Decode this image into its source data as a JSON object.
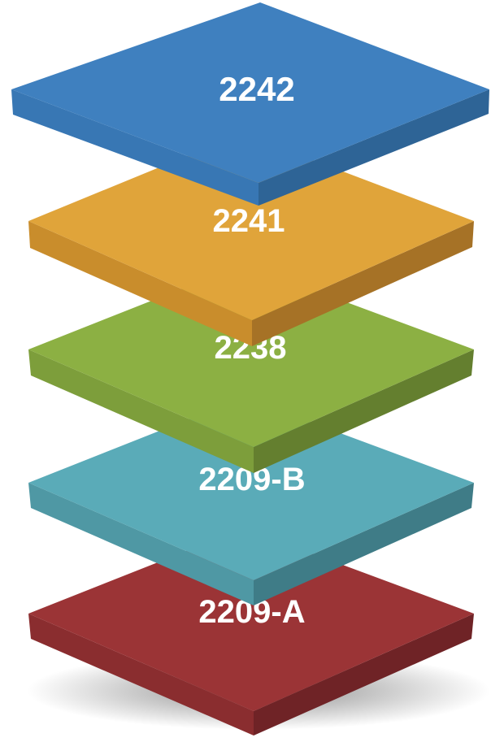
{
  "layers": [
    {
      "label": "2242",
      "colors": {
        "top": "#3f80bf",
        "left": "#3877b4",
        "right": "#2e6496"
      }
    },
    {
      "label": "2241",
      "colors": {
        "top": "#e0a43a",
        "left": "#c98d2c",
        "right": "#a67226"
      }
    },
    {
      "label": "2238",
      "colors": {
        "top": "#8cb043",
        "left": "#7d9e3b",
        "right": "#647f2f"
      }
    },
    {
      "label": "2209-B",
      "colors": {
        "top": "#5aabb8",
        "left": "#4f98a4",
        "right": "#3f7c87"
      }
    },
    {
      "label": "2209-A",
      "colors": {
        "top": "#9b3436",
        "left": "#8a2d2f",
        "right": "#6f2326"
      }
    }
  ]
}
